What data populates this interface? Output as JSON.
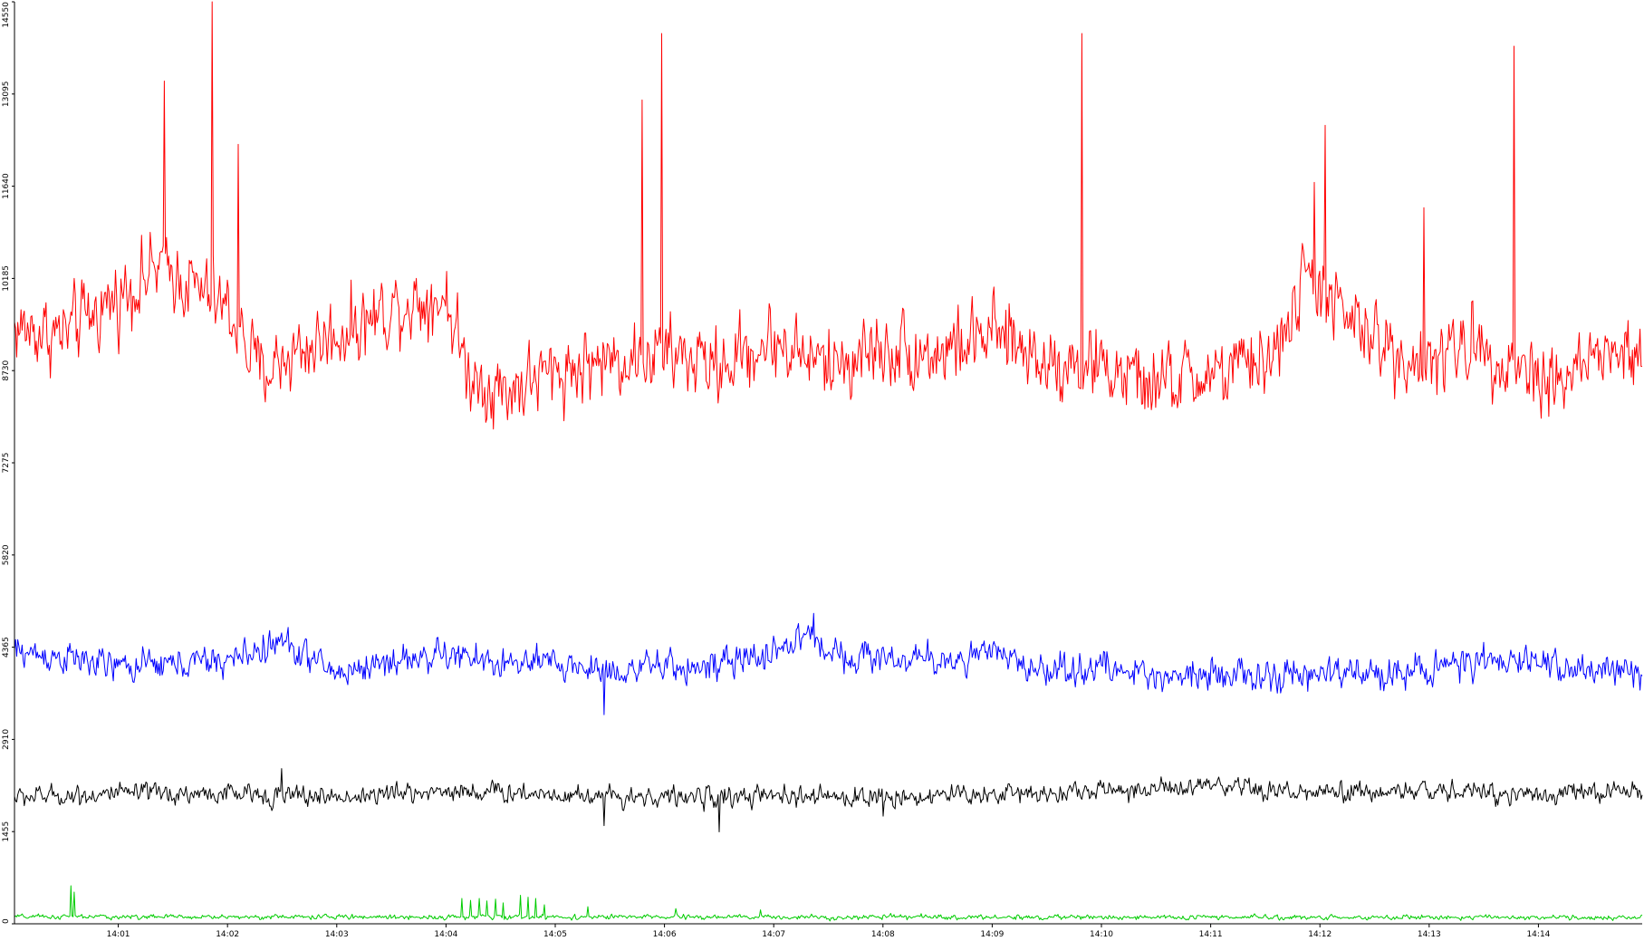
{
  "chart_data": {
    "type": "line",
    "title": "",
    "xlabel": "",
    "ylabel": "",
    "ylim": [
      0,
      14550
    ],
    "xlim_minutes": [
      0.05,
      14.95
    ],
    "grid": false,
    "legend": "none",
    "y_ticks": [
      {
        "value": 0,
        "label": "0"
      },
      {
        "value": 1455,
        "label": "1455"
      },
      {
        "value": 2910,
        "label": "2910"
      },
      {
        "value": 4365,
        "label": "4365"
      },
      {
        "value": 5820,
        "label": "5820"
      },
      {
        "value": 7275,
        "label": "7275"
      },
      {
        "value": 8730,
        "label": "8730"
      },
      {
        "value": 10185,
        "label": "10185"
      },
      {
        "value": 11640,
        "label": "11640"
      },
      {
        "value": 13095,
        "label": "13095"
      },
      {
        "value": 14550,
        "label": "14550"
      }
    ],
    "x_ticks": [
      {
        "value": 1,
        "label": "14:01"
      },
      {
        "value": 2,
        "label": "14:02"
      },
      {
        "value": 3,
        "label": "14:03"
      },
      {
        "value": 4,
        "label": "14:04"
      },
      {
        "value": 5,
        "label": "14:05"
      },
      {
        "value": 6,
        "label": "14:06"
      },
      {
        "value": 7,
        "label": "14:07"
      },
      {
        "value": 8,
        "label": "14:08"
      },
      {
        "value": 9,
        "label": "14:09"
      },
      {
        "value": 10,
        "label": "14:10"
      },
      {
        "value": 11,
        "label": "14:11"
      },
      {
        "value": 12,
        "label": "14:12"
      },
      {
        "value": 13,
        "label": "14:13"
      },
      {
        "value": 14,
        "label": "14:14"
      }
    ],
    "series": [
      {
        "color": "#ff0000",
        "noise": 550,
        "x": [
          0.05,
          0.5,
          1.0,
          1.4,
          2.0,
          2.3,
          2.6,
          3.0,
          3.6,
          4.0,
          4.2,
          4.5,
          5.0,
          5.5,
          6.0,
          6.5,
          7.0,
          7.5,
          8.0,
          8.5,
          9.0,
          9.5,
          10.0,
          10.4,
          10.8,
          11.2,
          11.6,
          11.9,
          12.2,
          12.6,
          13.0,
          13.4,
          13.8,
          14.2,
          14.6,
          14.95
        ],
        "y": [
          9400,
          9300,
          9900,
          10400,
          9700,
          8700,
          9000,
          9300,
          9800,
          9900,
          8700,
          8400,
          8700,
          8900,
          9000,
          8800,
          9200,
          8800,
          9100,
          9000,
          9300,
          8900,
          8800,
          8500,
          8600,
          8700,
          9000,
          10300,
          9600,
          9100,
          8800,
          9200,
          8800,
          8600,
          9000,
          8900
        ],
        "spikes": [
          {
            "x": 1.42,
            "y": 13300
          },
          {
            "x": 1.86,
            "y": 14550
          },
          {
            "x": 2.1,
            "y": 12300
          },
          {
            "x": 5.8,
            "y": 13000
          },
          {
            "x": 5.97,
            "y": 14050
          },
          {
            "x": 9.82,
            "y": 14050
          },
          {
            "x": 11.95,
            "y": 11700
          },
          {
            "x": 12.05,
            "y": 12600
          },
          {
            "x": 12.95,
            "y": 11300
          },
          {
            "x": 13.78,
            "y": 13850
          }
        ]
      },
      {
        "color": "#0000ff",
        "noise": 230,
        "x": [
          0.05,
          0.5,
          1.0,
          1.5,
          2.0,
          2.5,
          3.0,
          3.5,
          4.0,
          4.5,
          5.0,
          5.5,
          6.0,
          6.5,
          7.0,
          7.3,
          7.6,
          8.0,
          8.5,
          9.0,
          9.5,
          10.0,
          10.5,
          11.0,
          11.5,
          12.0,
          12.5,
          13.0,
          13.5,
          14.0,
          14.5,
          14.95
        ],
        "y": [
          4300,
          4200,
          4050,
          4100,
          4150,
          4450,
          3950,
          4150,
          4250,
          4100,
          4100,
          4000,
          4050,
          4050,
          4300,
          4550,
          4250,
          4200,
          4150,
          4250,
          4000,
          4050,
          3900,
          4000,
          3850,
          3950,
          3950,
          4050,
          4100,
          4150,
          4000,
          3950
        ],
        "spikes": [
          {
            "x": 7.37,
            "y": 4900
          },
          {
            "x": 5.45,
            "y": 3300
          }
        ]
      },
      {
        "color": "#000000",
        "noise": 150,
        "x": [
          0.05,
          1.0,
          2.0,
          3.0,
          4.0,
          5.0,
          6.0,
          7.0,
          8.0,
          9.0,
          10.0,
          11.0,
          12.0,
          13.0,
          14.0,
          14.95
        ],
        "y": [
          2000,
          2050,
          2050,
          2000,
          2100,
          2050,
          2000,
          2000,
          2000,
          2050,
          2100,
          2150,
          2050,
          2100,
          2050,
          2100
        ],
        "spikes": [
          {
            "x": 2.5,
            "y": 2450
          },
          {
            "x": 5.45,
            "y": 1550
          },
          {
            "x": 6.5,
            "y": 1450
          },
          {
            "x": 8.0,
            "y": 1700
          }
        ]
      },
      {
        "color": "#00cc00",
        "noise": 35,
        "x": [
          0.05,
          14.95
        ],
        "y": [
          110,
          100
        ],
        "spikes": [
          {
            "x": 0.57,
            "y": 600
          },
          {
            "x": 0.6,
            "y": 500
          },
          {
            "x": 4.15,
            "y": 400
          },
          {
            "x": 4.22,
            "y": 370
          },
          {
            "x": 4.3,
            "y": 400
          },
          {
            "x": 4.37,
            "y": 360
          },
          {
            "x": 4.45,
            "y": 390
          },
          {
            "x": 4.52,
            "y": 330
          },
          {
            "x": 4.68,
            "y": 450
          },
          {
            "x": 4.75,
            "y": 420
          },
          {
            "x": 4.82,
            "y": 400
          },
          {
            "x": 4.9,
            "y": 300
          },
          {
            "x": 5.3,
            "y": 270
          },
          {
            "x": 6.1,
            "y": 240
          },
          {
            "x": 6.88,
            "y": 220
          },
          {
            "x": 8.35,
            "y": 160
          },
          {
            "x": 12.93,
            "y": 140
          }
        ]
      }
    ]
  }
}
